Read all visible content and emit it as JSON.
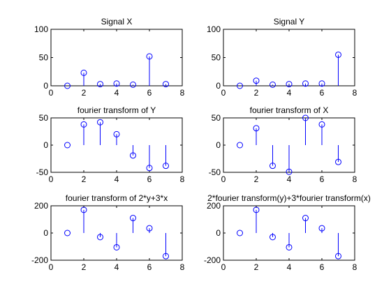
{
  "figure": {
    "background": "#ffffff"
  },
  "chart_data": [
    {
      "type": "stem",
      "title": "Signal X",
      "xlabel": "",
      "ylabel": "",
      "xlim": [
        0,
        8
      ],
      "ylim": [
        0,
        100
      ],
      "xticks": [
        0,
        2,
        4,
        6,
        8
      ],
      "yticks": [
        0,
        50,
        100
      ],
      "grid": false,
      "color": "#0000ff",
      "x": [
        1,
        2,
        3,
        4,
        5,
        6,
        7
      ],
      "y": [
        0,
        23,
        3,
        4,
        2,
        52,
        3
      ]
    },
    {
      "type": "stem",
      "title": "Signal Y",
      "xlabel": "",
      "ylabel": "",
      "xlim": [
        0,
        8
      ],
      "ylim": [
        0,
        100
      ],
      "xticks": [
        0,
        2,
        4,
        6,
        8
      ],
      "yticks": [
        0,
        50,
        100
      ],
      "grid": false,
      "color": "#0000ff",
      "x": [
        1,
        2,
        3,
        4,
        5,
        6,
        7
      ],
      "y": [
        0,
        9,
        2,
        3,
        4,
        4,
        55
      ]
    },
    {
      "type": "stem",
      "title": "fourier transform of Y",
      "xlabel": "",
      "ylabel": "",
      "xlim": [
        0,
        8
      ],
      "ylim": [
        -50,
        50
      ],
      "xticks": [
        0,
        2,
        4,
        6,
        8
      ],
      "yticks": [
        -50,
        0,
        50
      ],
      "grid": false,
      "color": "#0000ff",
      "x": [
        1,
        2,
        3,
        4,
        5,
        6,
        7
      ],
      "y": [
        0,
        38,
        42,
        20,
        -19,
        -42,
        -38
      ]
    },
    {
      "type": "stem",
      "title": "fourier transform of X",
      "xlabel": "",
      "ylabel": "",
      "xlim": [
        0,
        8
      ],
      "ylim": [
        -50,
        50
      ],
      "xticks": [
        0,
        2,
        4,
        6,
        8
      ],
      "yticks": [
        -50,
        0,
        50
      ],
      "grid": false,
      "color": "#0000ff",
      "x": [
        1,
        2,
        3,
        4,
        5,
        6,
        7
      ],
      "y": [
        0,
        31,
        -38,
        -49,
        50,
        38,
        -31
      ]
    },
    {
      "type": "stem",
      "title": "fourier transform of 2*y+3*x",
      "xlabel": "",
      "ylabel": "",
      "xlim": [
        0,
        8
      ],
      "ylim": [
        -200,
        200
      ],
      "xticks": [
        0,
        2,
        4,
        6,
        8
      ],
      "yticks": [
        -200,
        0,
        200
      ],
      "grid": false,
      "color": "#0000ff",
      "x": [
        1,
        2,
        3,
        4,
        5,
        6,
        7
      ],
      "y": [
        0,
        170,
        -30,
        -105,
        110,
        35,
        -170
      ]
    },
    {
      "type": "stem",
      "title": "2*fourier transform(y)+3*fourier transform(x)",
      "xlabel": "",
      "ylabel": "",
      "xlim": [
        0,
        8
      ],
      "ylim": [
        -200,
        200
      ],
      "xticks": [
        0,
        2,
        4,
        6,
        8
      ],
      "yticks": [
        -200,
        0,
        200
      ],
      "grid": false,
      "color": "#0000ff",
      "x": [
        1,
        2,
        3,
        4,
        5,
        6,
        7
      ],
      "y": [
        0,
        170,
        -30,
        -105,
        110,
        35,
        -170
      ]
    }
  ]
}
